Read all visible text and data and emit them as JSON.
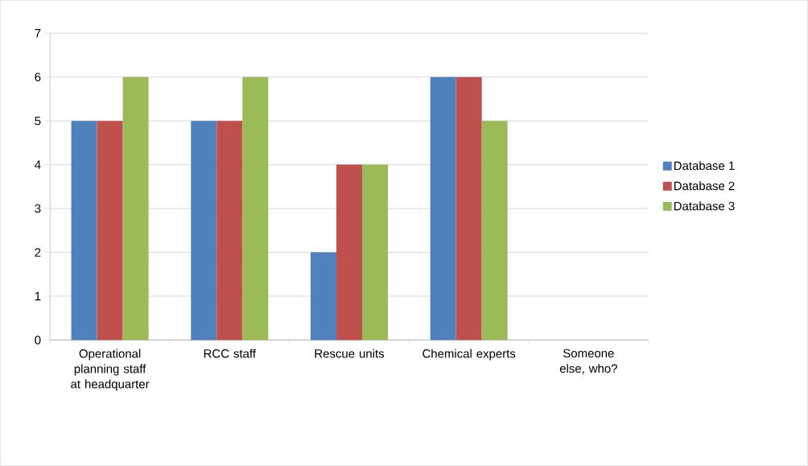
{
  "chart_data": {
    "type": "bar",
    "categories": [
      "Operational planning staff at headquarter",
      "RCC staff",
      "Rescue units",
      "Chemical experts",
      "Someone else, who?"
    ],
    "series": [
      {
        "name": "Database 1",
        "color": "#4f81bd",
        "values": [
          5,
          5,
          2,
          6,
          0
        ]
      },
      {
        "name": "Database 2",
        "color": "#c0504d",
        "values": [
          5,
          5,
          4,
          6,
          0
        ]
      },
      {
        "name": "Database 3",
        "color": "#9bbb59",
        "values": [
          6,
          6,
          4,
          5,
          0
        ]
      }
    ],
    "ylim": [
      0,
      7
    ],
    "yticks": [
      0,
      1,
      2,
      3,
      4,
      5,
      6,
      7
    ],
    "grid": "y",
    "legend": "right"
  }
}
